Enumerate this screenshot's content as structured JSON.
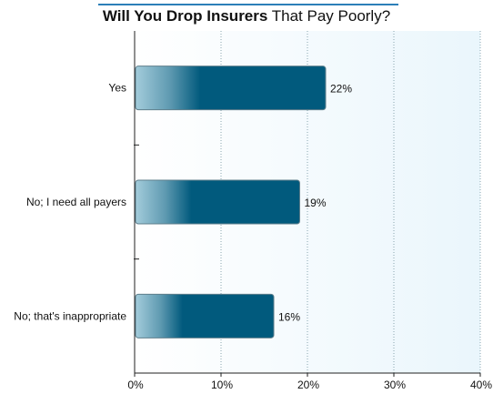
{
  "chart_data": {
    "type": "bar",
    "orientation": "horizontal",
    "title_bold": "Will You Drop Insurers",
    "title_rest": "That Pay Poorly?",
    "categories": [
      "Yes",
      "No; I need all payers",
      "No; that's inappropriate"
    ],
    "values": [
      22,
      19,
      16
    ],
    "value_labels": [
      "22%",
      "19%",
      "16%"
    ],
    "xlim": [
      0,
      40
    ],
    "x_ticks": [
      0,
      10,
      20,
      30,
      40
    ],
    "x_tick_labels": [
      "0%",
      "10%",
      "20%",
      "30%",
      "40%"
    ],
    "xlabel": "",
    "ylabel": "",
    "grid": "vertical dotted",
    "legend": "none",
    "colors": {
      "bar_dark": "#015a7d",
      "bar_light": "#9cc6d6",
      "plot_bg_right": "#eef7fc",
      "grid": "#8aa5b0",
      "title_rule": "#2c7fb8"
    }
  }
}
